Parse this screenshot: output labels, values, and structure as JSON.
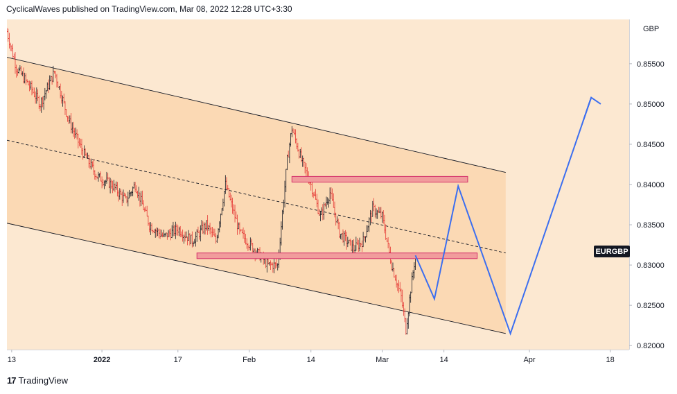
{
  "header": {
    "publisher_line": "CyclicalWaves published on TradingView.com, Mar 08, 2022 12:28 UTC+3:30"
  },
  "footer": {
    "logo_mark": "17",
    "brand": "TradingView"
  },
  "colors": {
    "background": "#fce8d1",
    "channel_fill": "#fbd9b4",
    "zone_fill": "#f19c9c",
    "zone_border": "#d32f6a",
    "projection": "#3b6ef0",
    "candle_up": "#131722",
    "candle_down": "#e53935",
    "symbol_tag": "#131722"
  },
  "chart_data": {
    "type": "candlestick",
    "symbol": "EURGBP",
    "currency": "GBP",
    "y_range": [
      0.8195,
      0.8605
    ],
    "y_ticks": [
      "0.85500",
      "0.85000",
      "0.84500",
      "0.84000",
      "0.83500",
      "0.83000",
      "0.82500",
      "0.82000"
    ],
    "y_tick_values": [
      0.855,
      0.85,
      0.845,
      0.84,
      0.835,
      0.83,
      0.825,
      0.82
    ],
    "x_range": [
      "2021-12-12",
      "2022-04-22"
    ],
    "x_ticks": [
      {
        "label": "13",
        "date": "2021-12-13"
      },
      {
        "label": "2022",
        "date": "2022-01-01"
      },
      {
        "label": "17",
        "date": "2022-01-17"
      },
      {
        "label": "Feb",
        "date": "2022-02-01"
      },
      {
        "label": "14",
        "date": "2022-02-14"
      },
      {
        "label": "Mar",
        "date": "2022-03-01"
      },
      {
        "label": "14",
        "date": "2022-03-14"
      },
      {
        "label": "Apr",
        "date": "2022-04-01"
      },
      {
        "label": "18",
        "date": "2022-04-18"
      }
    ],
    "last_price_label": "EURGBP",
    "last_price": 0.8312,
    "price_path": [
      [
        "2021-12-12",
        0.859
      ],
      [
        "2021-12-14",
        0.8545
      ],
      [
        "2021-12-17",
        0.852
      ],
      [
        "2021-12-19",
        0.85
      ],
      [
        "2021-12-22",
        0.854
      ],
      [
        "2021-12-25",
        0.848
      ],
      [
        "2021-12-28",
        0.844
      ],
      [
        "2021-12-31",
        0.841
      ],
      [
        "2022-01-03",
        0.84
      ],
      [
        "2022-01-06",
        0.838
      ],
      [
        "2022-01-08",
        0.84
      ],
      [
        "2022-01-11",
        0.835
      ],
      [
        "2022-01-14",
        0.8335
      ],
      [
        "2022-01-17",
        0.8345
      ],
      [
        "2022-01-20",
        0.833
      ],
      [
        "2022-01-23",
        0.835
      ],
      [
        "2022-01-25",
        0.833
      ],
      [
        "2022-01-27",
        0.84
      ],
      [
        "2022-01-30",
        0.834
      ],
      [
        "2022-02-02",
        0.832
      ],
      [
        "2022-02-05",
        0.83
      ],
      [
        "2022-02-07",
        0.83
      ],
      [
        "2022-02-09",
        0.843
      ],
      [
        "2022-02-10",
        0.847
      ],
      [
        "2022-02-12",
        0.843
      ],
      [
        "2022-02-14",
        0.84
      ],
      [
        "2022-02-16",
        0.836
      ],
      [
        "2022-02-18",
        0.839
      ],
      [
        "2022-02-20",
        0.834
      ],
      [
        "2022-02-23",
        0.832
      ],
      [
        "2022-02-25",
        0.833
      ],
      [
        "2022-02-27",
        0.837
      ],
      [
        "2022-03-01",
        0.836
      ],
      [
        "2022-03-03",
        0.83
      ],
      [
        "2022-03-05",
        0.826
      ],
      [
        "2022-03-06",
        0.822
      ],
      [
        "2022-03-07",
        0.827
      ],
      [
        "2022-03-08",
        0.8312
      ]
    ],
    "channel": {
      "upper": [
        [
          "2021-12-12",
          0.8558
        ],
        [
          "2022-03-27",
          0.8415
        ]
      ],
      "middle": [
        [
          "2021-12-12",
          0.8455
        ],
        [
          "2022-03-27",
          0.8315
        ]
      ],
      "lower": [
        [
          "2021-12-12",
          0.8352
        ],
        [
          "2022-03-27",
          0.8215
        ]
      ]
    },
    "zones": [
      {
        "start": "2022-02-10",
        "end": "2022-03-19",
        "low": 0.8403,
        "high": 0.841
      },
      {
        "start": "2022-01-21",
        "end": "2022-03-21",
        "low": 0.8308,
        "high": 0.8315
      }
    ],
    "projection": [
      [
        "2022-03-08",
        0.8312
      ],
      [
        "2022-03-12",
        0.8258
      ],
      [
        "2022-03-17",
        0.8398
      ],
      [
        "2022-03-28",
        0.8215
      ],
      [
        "2022-04-14",
        0.8508
      ],
      [
        "2022-04-16",
        0.85
      ]
    ]
  }
}
